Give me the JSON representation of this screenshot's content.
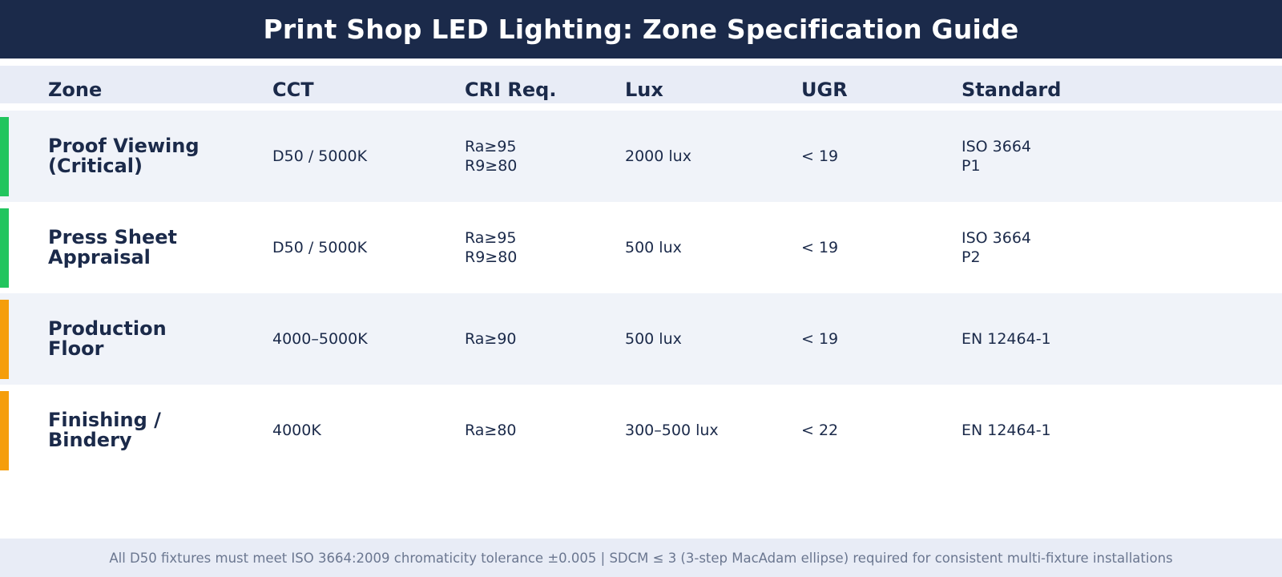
{
  "title": "Print Shop LED Lighting: Zone Specification Guide",
  "headers": {
    "zone": "Zone",
    "cct": "CCT",
    "cri": "CRI Req.",
    "lux": "Lux",
    "ugr": "UGR",
    "standard": "Standard"
  },
  "colors": {
    "title_bg": "#1b2a4a",
    "header_bg": "#e8ecf6",
    "alt_row_bg": "#f0f3f9",
    "critical_accent": "#22c55e",
    "general_accent": "#f59e0b"
  },
  "rows": [
    {
      "zone_line1": "Proof Viewing",
      "zone_line2": "(Critical)",
      "cct": "D50 / 5000K",
      "cri_line1": "Ra≥95",
      "cri_line2": "R9≥80",
      "lux": "2000 lux",
      "ugr": "< 19",
      "standard_line1": "ISO 3664",
      "standard_line2": "P1",
      "accent": "#22c55e"
    },
    {
      "zone_line1": "Press Sheet",
      "zone_line2": "Appraisal",
      "cct": "D50 / 5000K",
      "cri_line1": "Ra≥95",
      "cri_line2": "R9≥80",
      "lux": "500 lux",
      "ugr": "< 19",
      "standard_line1": "ISO 3664",
      "standard_line2": "P2",
      "accent": "#22c55e"
    },
    {
      "zone_line1": "Production",
      "zone_line2": "Floor",
      "cct": "4000–5000K",
      "cri_line1": "Ra≥90",
      "cri_line2": "",
      "lux": "500 lux",
      "ugr": "< 19",
      "standard_line1": "EN 12464-1",
      "standard_line2": "",
      "accent": "#f59e0b"
    },
    {
      "zone_line1": "Finishing /",
      "zone_line2": "Bindery",
      "cct": "4000K",
      "cri_line1": "Ra≥80",
      "cri_line2": "",
      "lux": "300–500 lux",
      "ugr": "< 22",
      "standard_line1": "EN 12464-1",
      "standard_line2": "",
      "accent": "#f59e0b"
    }
  ],
  "footer": "All D50 fixtures must meet ISO 3664:2009 chromaticity tolerance ±0.005 | SDCM ≤ 3 (3-step MacAdam ellipse) required for consistent multi-fixture installations"
}
